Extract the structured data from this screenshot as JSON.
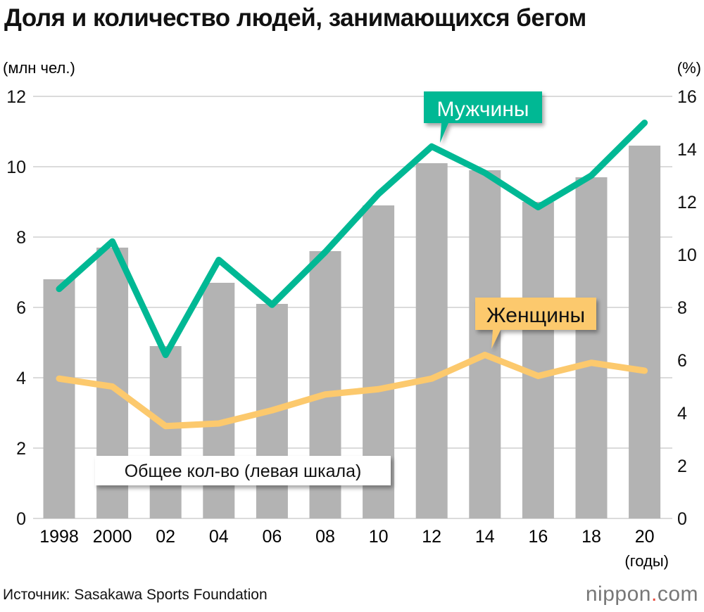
{
  "chart_data": {
    "type": "bar+line",
    "title": "Доля и количество людей, занимающихся бегом",
    "ylabel_left": "(млн чел.)",
    "ylabel_right": "(%)",
    "xlabel": "(годы)",
    "categories": [
      "1998",
      "2000",
      "02",
      "04",
      "06",
      "08",
      "10",
      "12",
      "14",
      "16",
      "18",
      "20"
    ],
    "ylim_left": [
      0,
      12
    ],
    "yticks_left": [
      0,
      2,
      4,
      6,
      8,
      10,
      12
    ],
    "ylim_right": [
      0,
      16
    ],
    "yticks_right": [
      0,
      2,
      4,
      6,
      8,
      10,
      12,
      14,
      16
    ],
    "grid": true,
    "series": [
      {
        "name": "Общее кол-во (левая шкала)",
        "type": "bar",
        "axis": "left",
        "color": "#b3b3b3",
        "values": [
          6.8,
          7.7,
          4.9,
          6.7,
          6.1,
          7.6,
          8.9,
          10.1,
          9.9,
          9.0,
          9.7,
          10.6
        ]
      },
      {
        "name": "Мужчины",
        "type": "line",
        "axis": "right",
        "color": "#00b894",
        "values": [
          8.7,
          10.5,
          6.2,
          9.8,
          8.1,
          10.1,
          12.3,
          14.1,
          13.1,
          11.8,
          13.0,
          15.0
        ]
      },
      {
        "name": "Женщины",
        "type": "line",
        "axis": "right",
        "color": "#fcc96d",
        "values": [
          5.3,
          5.0,
          3.5,
          3.6,
          4.1,
          4.7,
          4.9,
          5.3,
          6.2,
          5.4,
          5.9,
          5.6
        ]
      }
    ]
  },
  "source": "Источник: Sasakawa Sports Foundation",
  "logo": {
    "name": "nippon",
    "dot": ".",
    "tld": "com"
  }
}
